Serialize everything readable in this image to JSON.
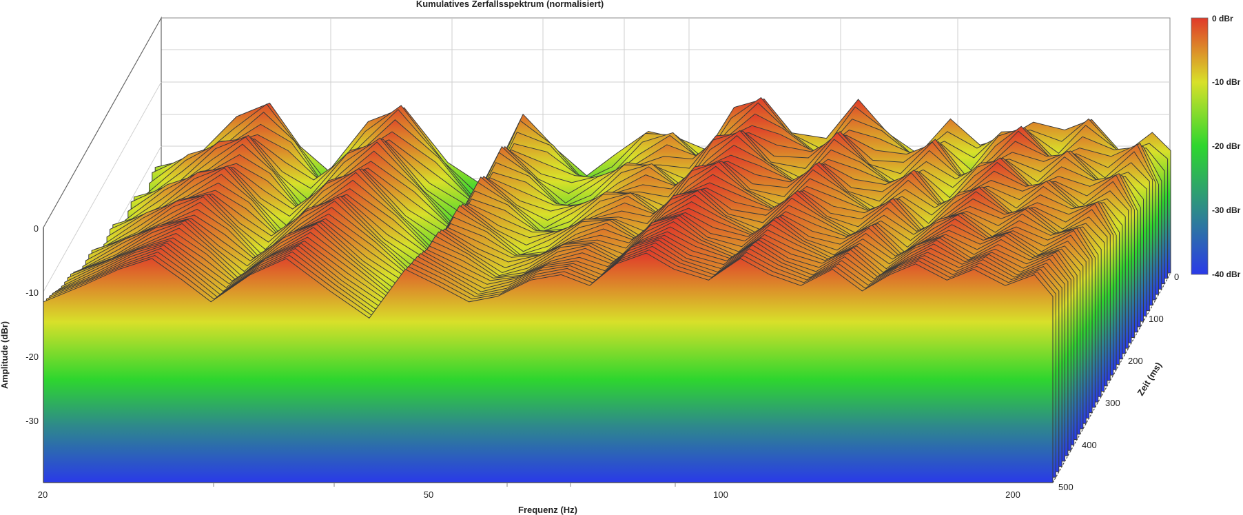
{
  "chart_data": {
    "type": "waterfall-3d",
    "title": "Kumulatives Zerfallsspektrum (normalisiert)",
    "xlabel": "Frequenz (Hz)",
    "ylabel": "Amplitude (dBr)",
    "zlabel": "Zeit (ms)",
    "x_ticks": [
      "20",
      "50",
      "100",
      "200"
    ],
    "x_scale": "log",
    "xlim": [
      20,
      230
    ],
    "y_ticks": [
      "0",
      "-10",
      "-20",
      "-30"
    ],
    "ylim": [
      -40,
      0
    ],
    "z_ticks": [
      "0",
      "100",
      "200",
      "300",
      "400",
      "500"
    ],
    "zlim": [
      0,
      500
    ],
    "colorbar": {
      "labels": [
        "0 dBr",
        "-10 dBr",
        "-20 dBr",
        "-30 dBr",
        "-40 dBr"
      ],
      "colors": [
        "#e03a2a",
        "#d8e02a",
        "#2ed62e",
        "#2e8a8a",
        "#2a3ae8"
      ]
    },
    "front_slice": {
      "time_ms": 0,
      "freq_hz": [
        20,
        22,
        24,
        26,
        28,
        30,
        33,
        36,
        40,
        44,
        48,
        52,
        56,
        60,
        65,
        70,
        75,
        80,
        86,
        92,
        100,
        108,
        116,
        125,
        135,
        145,
        155,
        165,
        178,
        190,
        205,
        220,
        230
      ],
      "amp_dbr": [
        -9,
        -6,
        -3,
        -1,
        -5,
        -9,
        -4,
        -1,
        -7,
        -12,
        -3,
        -6,
        -9,
        -8,
        -5,
        -4,
        -6,
        -2,
        0,
        -3,
        -5,
        -1,
        -4,
        -6,
        -3,
        -7,
        -4,
        -2,
        -5,
        -3,
        -6,
        -4,
        -8
      ]
    },
    "grid": true,
    "legend": "colorbar-right"
  }
}
